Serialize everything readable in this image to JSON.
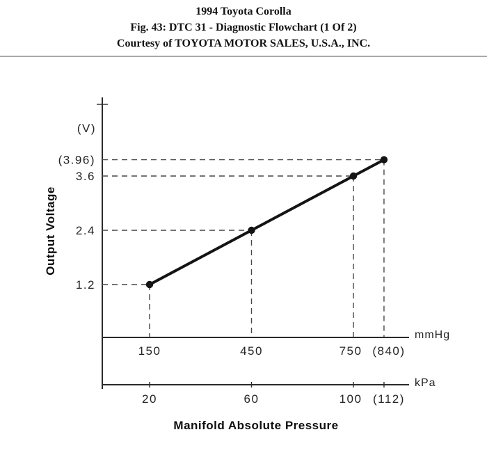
{
  "header": {
    "line1": "1994 Toyota Corolla",
    "line2": "Fig. 43: DTC 31 - Diagnostic Flowchart (1 Of 2)",
    "line3": "Courtesy of TOYOTA MOTOR SALES, U.S.A., INC."
  },
  "chart_data": {
    "type": "line",
    "title": "",
    "xlabel": "Manifold Absolute Pressure",
    "ylabel": "Output Voltage",
    "y_unit": "(V)",
    "x_unit_primary": "mmHg",
    "x_unit_secondary": "kPa",
    "legend": "none",
    "grid": "dashed guide lines from each data point to both axes",
    "xlim_mmHg": [
      0,
      900
    ],
    "ylim_volts": [
      0,
      4.5
    ],
    "points": [
      {
        "mmHg": 150,
        "kPa": 20,
        "voltage": 1.2,
        "mmHg_label": "150",
        "kPa_label": "20",
        "v_label": "1.2",
        "label_dx": 0
      },
      {
        "mmHg": 450,
        "kPa": 60,
        "voltage": 2.4,
        "mmHg_label": "450",
        "kPa_label": "60",
        "v_label": "2.4",
        "label_dx": 0
      },
      {
        "mmHg": 750,
        "kPa": 100,
        "voltage": 3.6,
        "mmHg_label": "750",
        "kPa_label": "100",
        "v_label": "3.6",
        "label_dx": -4
      },
      {
        "mmHg": 840,
        "kPa": 112,
        "voltage": 3.96,
        "mmHg_label": "(840)",
        "kPa_label": "(112)",
        "v_label": "(3.96)",
        "label_dx": 7
      }
    ]
  }
}
